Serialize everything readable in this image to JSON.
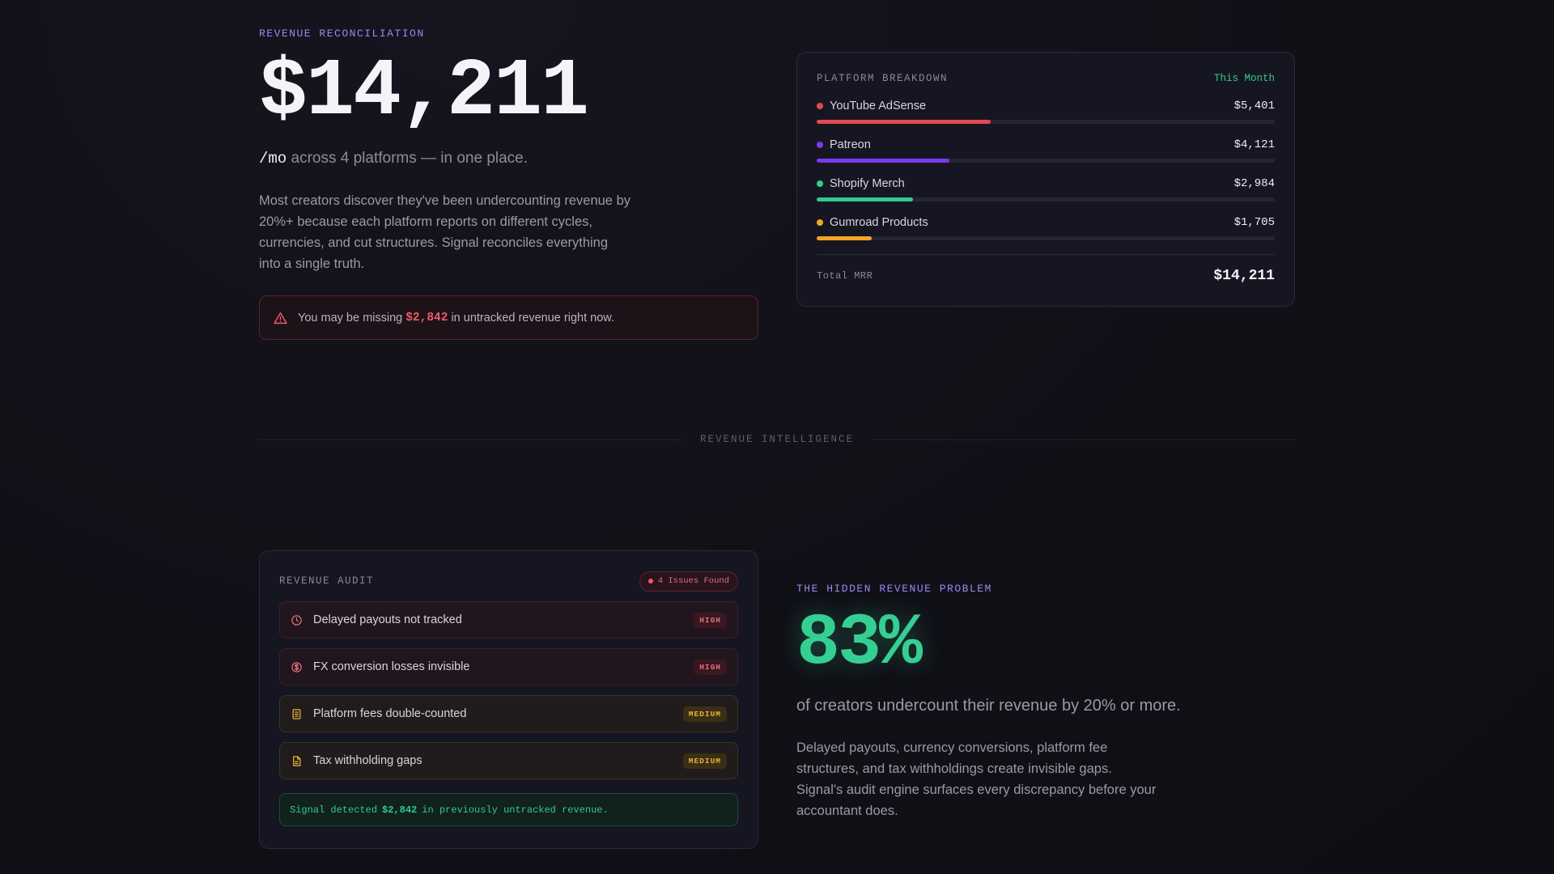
{
  "hero": {
    "eyebrow": "REVENUE RECONCILIATION",
    "amount": "$14,211",
    "unit": "/mo",
    "subtitle": "across 4 platforms — in one place.",
    "body": "Most creators discover they've been undercounting revenue by 20%+ because each platform reports on different cycles, currencies, and cut structures. Signal reconciles everything into a single truth.",
    "alert": {
      "prefix": "You may be missing",
      "amount": "$2,842",
      "suffix": "in untracked revenue right now.",
      "icon": "warning-triangle-icon"
    }
  },
  "platform_breakdown": {
    "title": "PLATFORM BREAKDOWN",
    "period": "This Month",
    "platforms": [
      {
        "name": "YouTube AdSense",
        "value": "$5,401",
        "share": 0.38,
        "color": "#e5484d"
      },
      {
        "name": "Patreon",
        "value": "$4,121",
        "share": 0.29,
        "color": "#7c3aed"
      },
      {
        "name": "Shopify Merch",
        "value": "$2,984",
        "share": 0.21,
        "color": "#34c98e"
      },
      {
        "name": "Gumroad Products",
        "value": "$1,705",
        "share": 0.12,
        "color": "#f5a524"
      }
    ],
    "total_label": "Total MRR",
    "total_value": "$14,211"
  },
  "divider": {
    "label": "REVENUE INTELLIGENCE"
  },
  "audit": {
    "title": "REVENUE AUDIT",
    "badge": "4 Issues Found",
    "issues": [
      {
        "label": "Delayed payouts not tracked",
        "severity": "HIGH",
        "icon": "clock-icon"
      },
      {
        "label": "FX conversion losses invisible",
        "severity": "HIGH",
        "icon": "dollar-circle-icon"
      },
      {
        "label": "Platform fees double-counted",
        "severity": "MEDIUM",
        "icon": "receipt-icon"
      },
      {
        "label": "Tax withholding gaps",
        "severity": "MEDIUM",
        "icon": "document-icon"
      }
    ],
    "detect": {
      "prefix": "Signal detected",
      "amount": "$2,842",
      "suffix": "in previously untracked revenue."
    }
  },
  "hidden_problem": {
    "eyebrow": "THE HIDDEN REVENUE PROBLEM",
    "percent": "83%",
    "caption": "of creators undercount their revenue by 20% or more.",
    "body": "Delayed payouts, currency conversions, platform fee structures, and tax withholdings create invisible gaps. Signal's audit engine surfaces every discrepancy before your accountant does."
  },
  "colors": {
    "accent_purple": "#9d86f0",
    "accent_green": "#34c98e",
    "alert_red": "#f05a6e",
    "warning_amber": "#e8b23a"
  }
}
